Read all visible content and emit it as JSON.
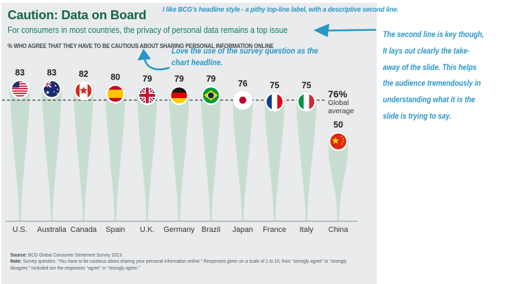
{
  "slide": {
    "title": "Caution: Data on Board",
    "subtitle": "For consumers in most countries, the privacy of personal data remains a top issue",
    "chart_headline": "% WHO AGREE THAT THEY HAVE TO BE CAUTIOUS ABOUT SHARING PERSONAL INFORMATION ONLINE",
    "source_label": "Source:",
    "source_text": " BCG Global Consumer Sentiment Survey 2013.",
    "note_label": "Note:",
    "note_text": " Survey question: “You have to be cautious about sharing your personal information online.” Responses given on a scale of 1 to 10, from “strongly agree” to “strongly disagree.” Included are the responses “agree” or “strongly agree.”"
  },
  "chart_data": {
    "type": "bar",
    "title": "% WHO AGREE THAT THEY HAVE TO BE CAUTIOUS ABOUT SHARING PERSONAL INFORMATION ONLINE",
    "categories": [
      "U.S.",
      "Australia",
      "Canada",
      "Spain",
      "U.K.",
      "Germany",
      "Brazil",
      "Japan",
      "France",
      "Italy",
      "China"
    ],
    "values": [
      83,
      83,
      82,
      80,
      79,
      79,
      79,
      76,
      75,
      75,
      50
    ],
    "flags": [
      "flag-us",
      "flag-australia",
      "flag-canada",
      "flag-spain",
      "flag-uk",
      "flag-germany",
      "flag-brazil",
      "flag-japan",
      "flag-france",
      "flag-italy",
      "flag-china"
    ],
    "ylim": [
      0,
      100
    ],
    "grid": false,
    "legend": false,
    "global_average": {
      "value": 76,
      "value_label": "76%",
      "caption_line1": "Global",
      "caption_line2": "average"
    }
  },
  "annotations": {
    "top_note": "I like BCG’s headline style - a pithy top-line label, with a descriptive second line.",
    "middle_note": [
      "Love the use of the survey question as the",
      "chart headline."
    ],
    "right_note_lines": [
      "The second line is key though,",
      "It lays out clearly the take-",
      "away of the slide. This helps",
      "the audience tremendously in",
      "understanding what it is the",
      "slide is trying to say."
    ]
  },
  "colors": {
    "slide_bg": "#e9ebec",
    "balloon": "#c8ddd1",
    "title": "#15634b",
    "subtitle": "#0f7c68",
    "ink": "#2a96c6",
    "dashed_line": "#4c4f52",
    "axis_line": "#9aa0a3"
  }
}
